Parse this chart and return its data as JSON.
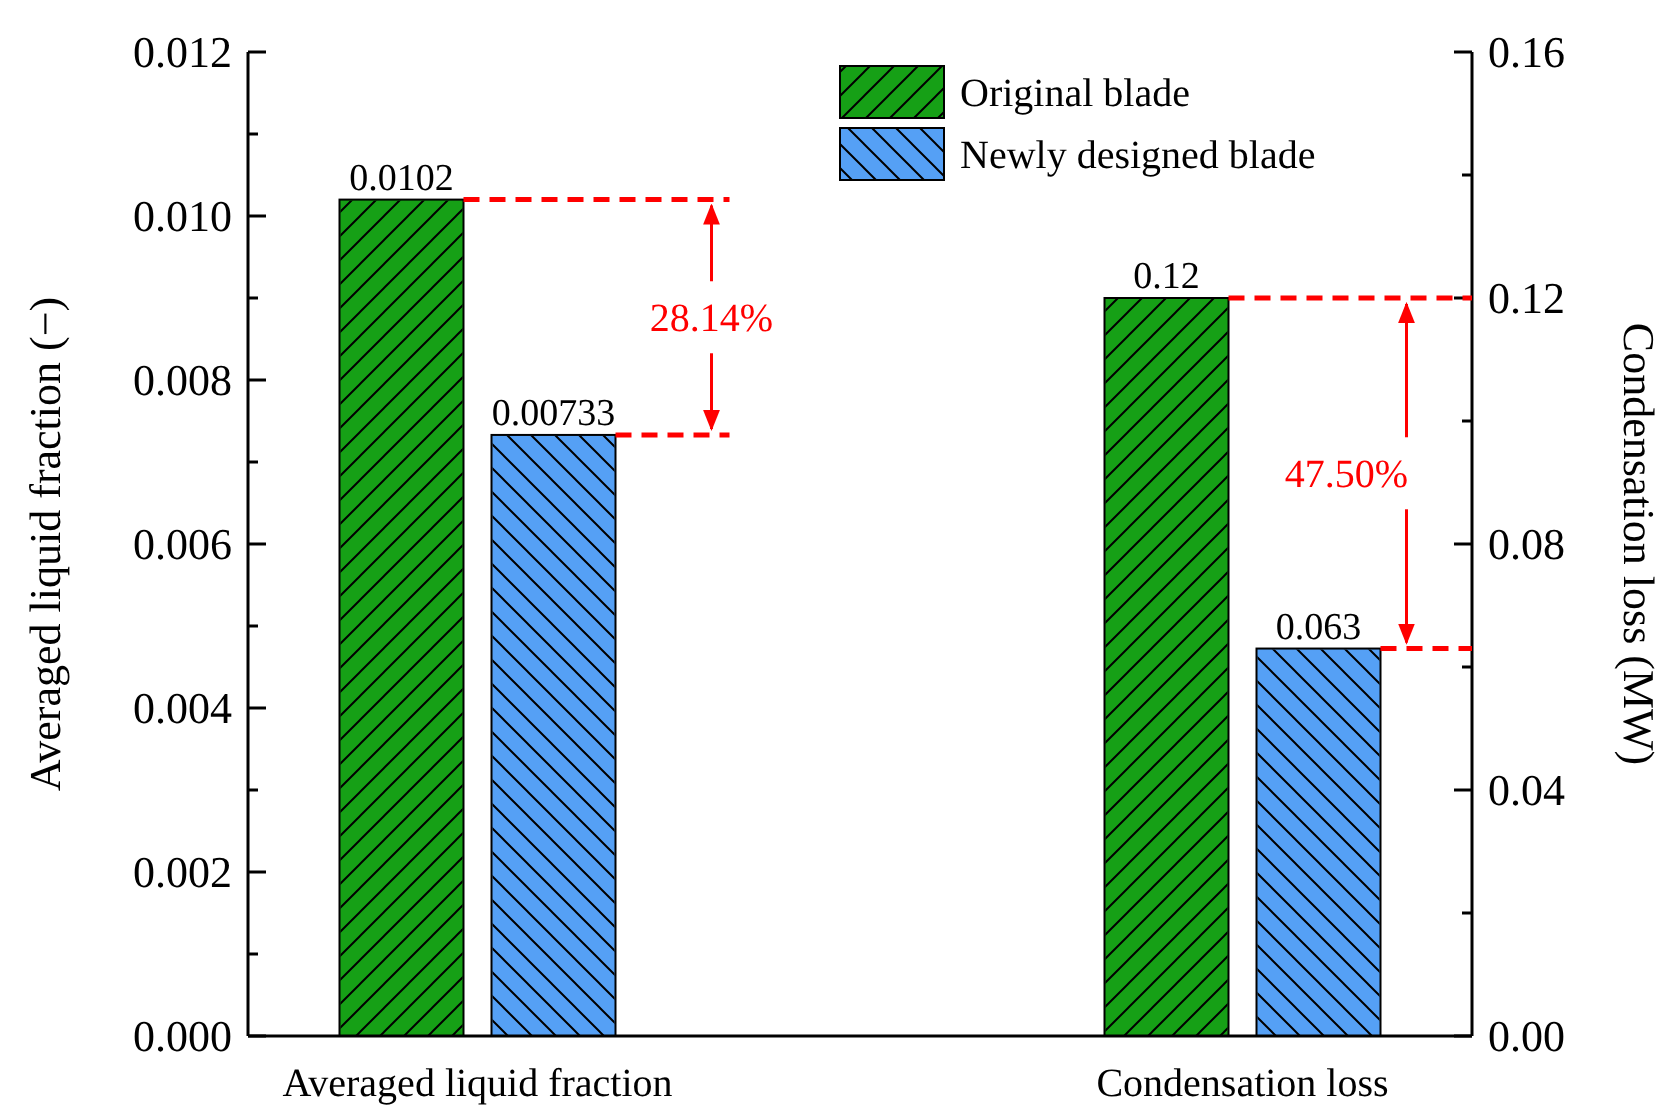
{
  "chart_data": {
    "type": "bar",
    "ylabel": "Averaged liquid fraction (−)",
    "y2label": "Condensation loss (MW)",
    "categories": [
      "Averaged liquid fraction",
      "Condensation loss"
    ],
    "series": [
      {
        "name": "Original blade",
        "color": "#16a016",
        "values": [
          0.0102,
          null
        ]
      },
      {
        "name": "Newly designed blade",
        "color": "#55a0f5",
        "values": [
          0.00733,
          null
        ]
      },
      {
        "color": "#16a016",
        "values": [
          null,
          0.12
        ],
        "axis": "y2"
      },
      {
        "color": "#55a0f5",
        "values": [
          null,
          0.063
        ],
        "axis": "y2"
      }
    ],
    "ylim": [
      0,
      0.012
    ],
    "yticks": [
      {
        "value": 0,
        "label": "0.000"
      },
      {
        "value": 0.001,
        "label": null
      },
      {
        "value": 0.002,
        "label": "0.002"
      },
      {
        "value": 0.003,
        "label": null
      },
      {
        "value": 0.004,
        "label": "0.004"
      },
      {
        "value": 0.005,
        "label": null
      },
      {
        "value": 0.006,
        "label": "0.006"
      },
      {
        "value": 0.007,
        "label": null
      },
      {
        "value": 0.008,
        "label": "0.008"
      },
      {
        "value": 0.009,
        "label": null
      },
      {
        "value": 0.01,
        "label": "0.010"
      },
      {
        "value": 0.011,
        "label": null
      },
      {
        "value": 0.012,
        "label": "0.012"
      }
    ],
    "y2lim": [
      0,
      0.16
    ],
    "y2ticks": [
      {
        "value": 0,
        "label": "0.00"
      },
      {
        "value": 0.02,
        "label": null
      },
      {
        "value": 0.04,
        "label": "0.04"
      },
      {
        "value": 0.06,
        "label": null
      },
      {
        "value": 0.08,
        "label": "0.08"
      },
      {
        "value": 0.1,
        "label": null
      },
      {
        "value": 0.12,
        "label": "0.12"
      },
      {
        "value": 0.14,
        "label": null
      },
      {
        "value": 0.16,
        "label": "0.16"
      }
    ],
    "data_labels": true,
    "legend": "top right",
    "grid": false,
    "annotations": [
      "28.14%",
      "47.50%"
    ]
  }
}
